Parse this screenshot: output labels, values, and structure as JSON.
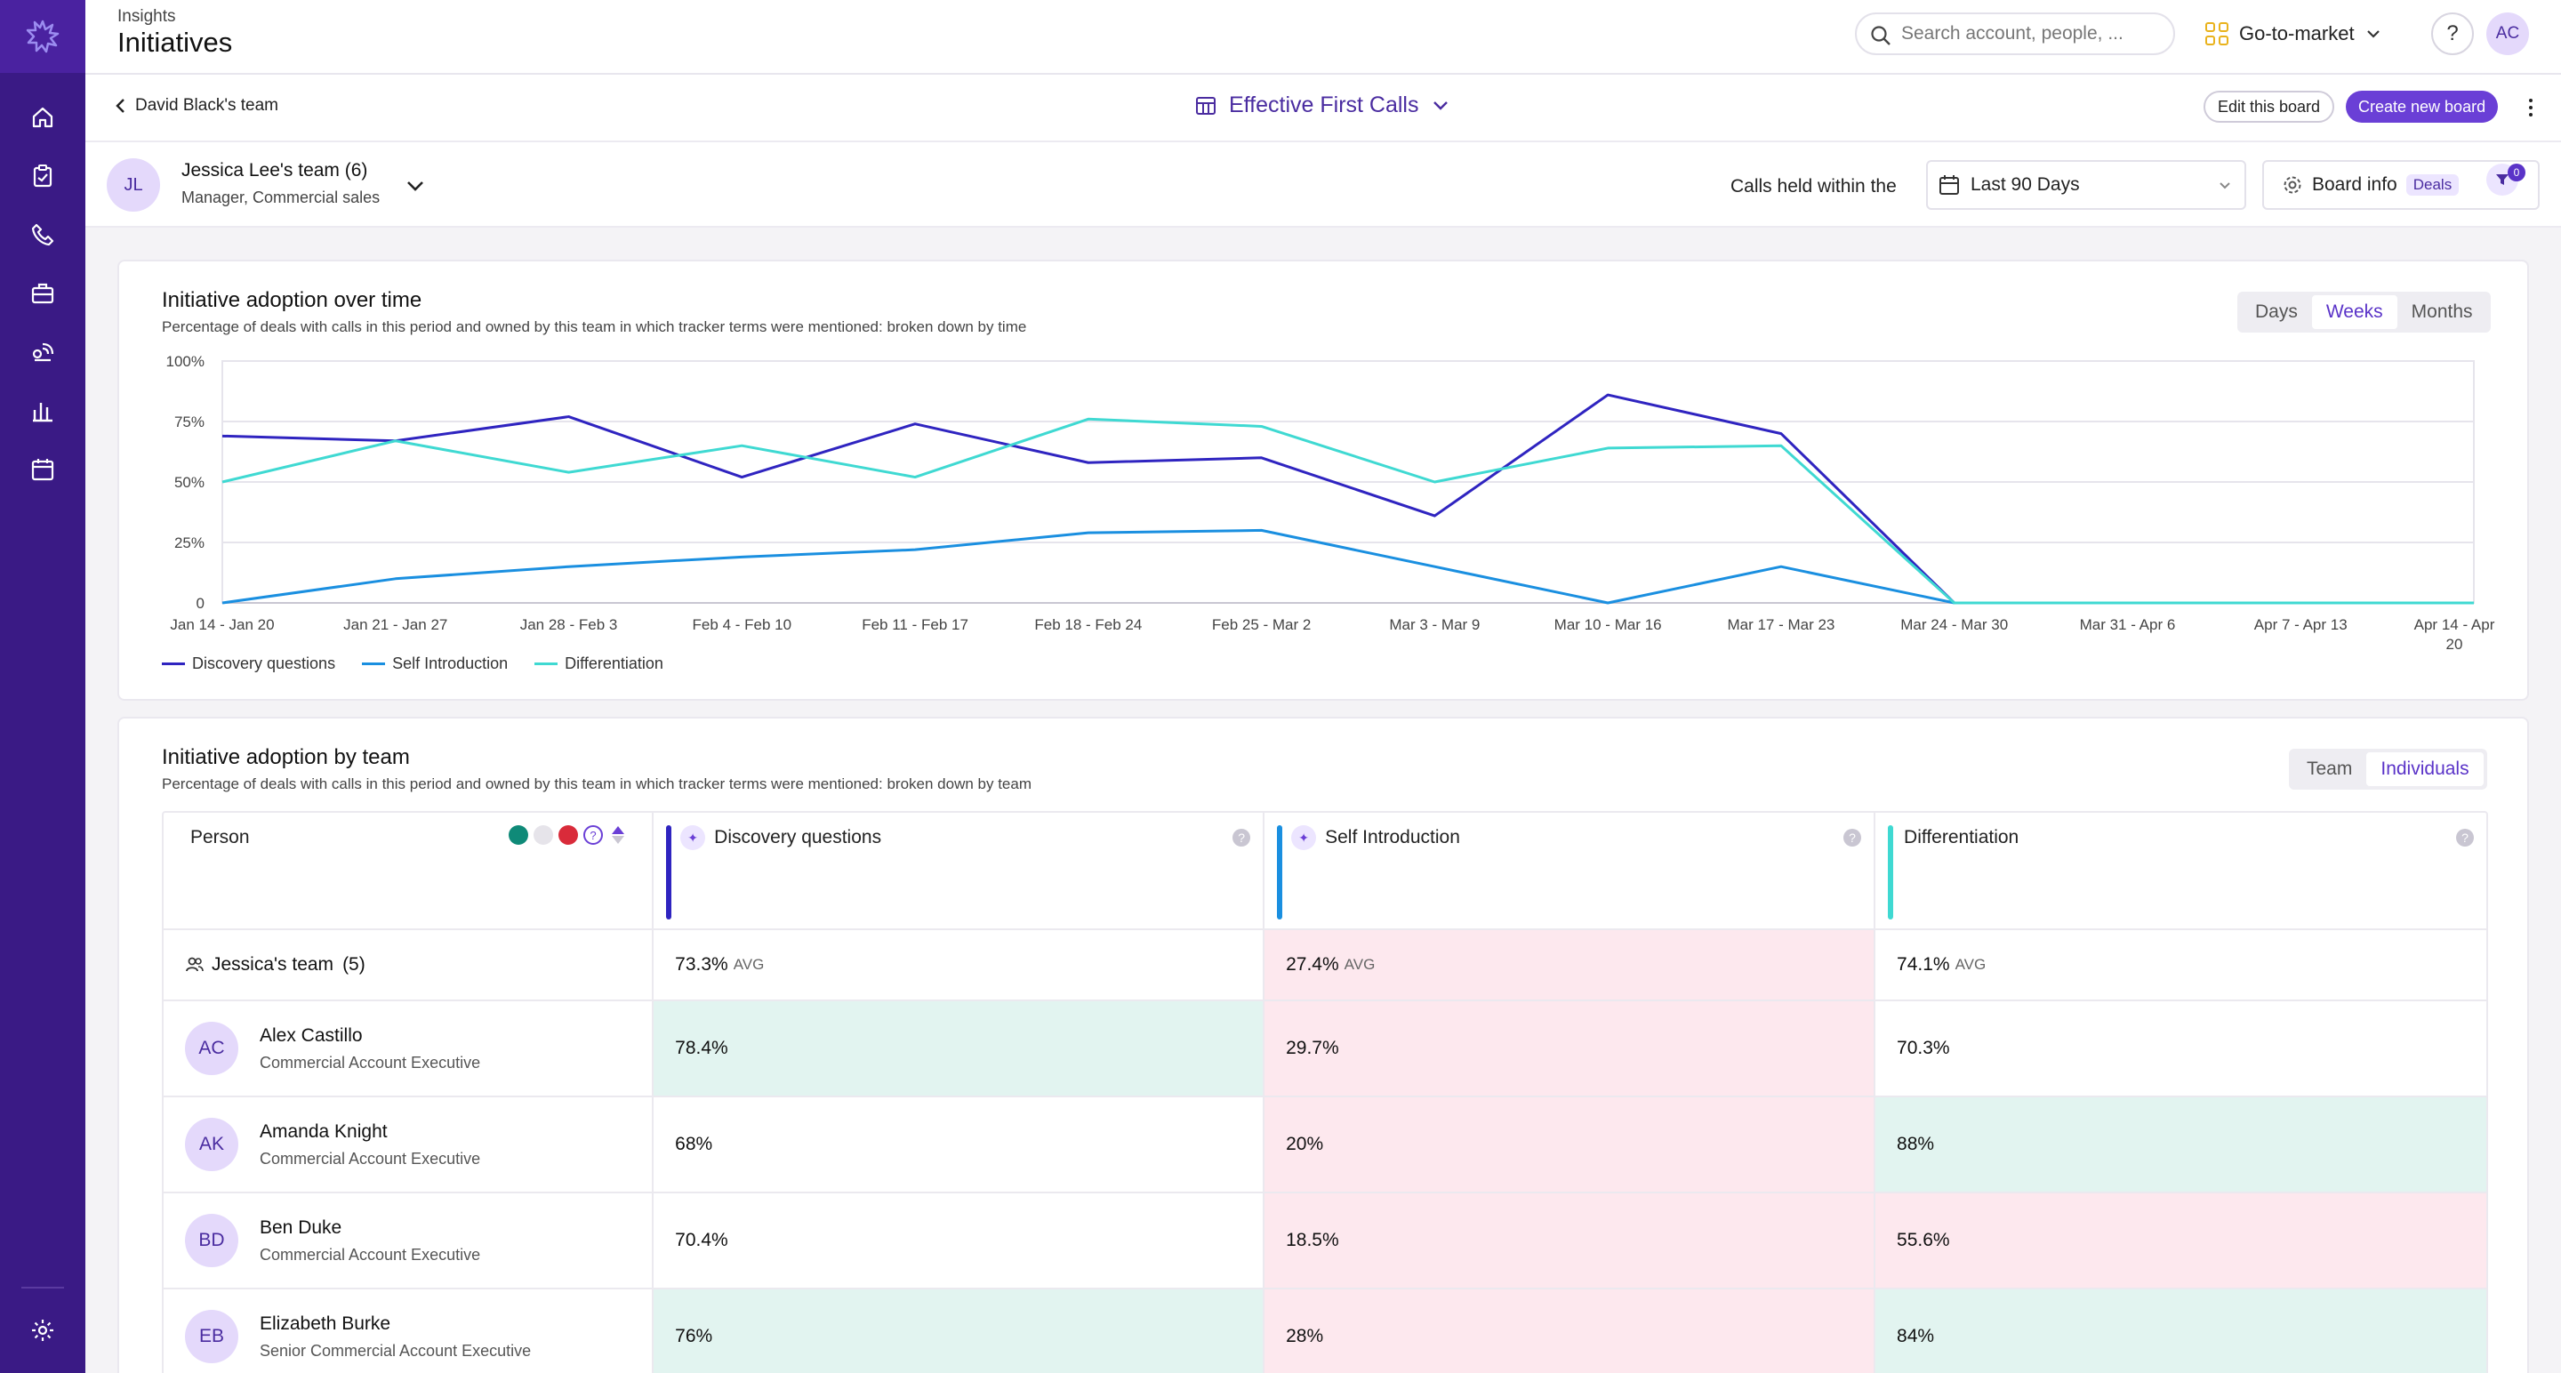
{
  "header": {
    "category": "Insights",
    "title": "Initiatives",
    "search_placeholder": "Search account, people, ...",
    "workspace": "Go-to-market",
    "help": "?",
    "user_initials": "AC"
  },
  "board": {
    "back_label": "David Black's team",
    "title": "Effective First Calls",
    "edit_label": "Edit this board",
    "create_label": "Create new board"
  },
  "team": {
    "initials": "JL",
    "name": "Jessica Lee's team (6)",
    "role": "Manager, Commercial sales"
  },
  "filters": {
    "calls_label": "Calls held within the",
    "date_range": "Last 90 Days",
    "board_info": "Board info",
    "deals_badge": "Deals",
    "filter_count": "0"
  },
  "colors": {
    "accent": "#6a3fd6",
    "sidebar": "#3a1a85",
    "discovery": "#2f24c0",
    "self_intro": "#1a8fe0",
    "differentiation": "#3fd9d2",
    "good_cell": "#e2f4f0",
    "bad_cell": "#fde8ee"
  },
  "adoption_time": {
    "title": "Initiative adoption over time",
    "subtitle": "Percentage of deals with calls in this period and owned by this team in which tracker terms were mentioned: broken down by time",
    "toggles": [
      "Days",
      "Weeks",
      "Months"
    ],
    "active_toggle": "Weeks"
  },
  "chart_data": {
    "type": "line",
    "categories": [
      "Jan 14 - Jan 20",
      "Jan 21 - Jan 27",
      "Jan 28 - Feb 3",
      "Feb 4 - Feb 10",
      "Feb 11 - Feb 17",
      "Feb 18 - Feb 24",
      "Feb 25 - Mar 2",
      "Mar 3 - Mar 9",
      "Mar 10 - Mar 16",
      "Mar 17 - Mar 23",
      "Mar 24 - Mar 30",
      "Mar 31 - Apr 6",
      "Apr 7 - Apr 13",
      "Apr 14 - Apr 20"
    ],
    "y_ticks": [
      "0",
      "25%",
      "50%",
      "75%",
      "100%"
    ],
    "ylim": [
      0,
      100
    ],
    "grid": true,
    "legend_position": "bottom-left",
    "series": [
      {
        "name": "Discovery questions",
        "color": "#2f24c0",
        "values": [
          69,
          67,
          77,
          52,
          74,
          58,
          60,
          36,
          86,
          70,
          0,
          0,
          0,
          0
        ]
      },
      {
        "name": "Self Introduction",
        "color": "#1a8fe0",
        "values": [
          0,
          10,
          15,
          19,
          22,
          29,
          30,
          15,
          0,
          15,
          0,
          0,
          0,
          0
        ]
      },
      {
        "name": "Differentiation",
        "color": "#3fd9d2",
        "values": [
          50,
          67,
          54,
          65,
          52,
          76,
          73,
          50,
          64,
          65,
          0,
          0,
          0,
          0
        ]
      }
    ]
  },
  "adoption_team": {
    "title": "Initiative adoption by team",
    "subtitle": "Percentage of deals with calls in this period and owned by this team in which tracker terms were mentioned: broken down by team",
    "toggles": [
      "Team",
      "Individuals"
    ],
    "active_toggle": "Individuals",
    "columns": {
      "person": "Person",
      "discovery": "Discovery questions",
      "self_intro": "Self Introduction",
      "differentiation": "Differentiation"
    },
    "team_row": {
      "label": "Jessica's team",
      "count": "(5)",
      "discovery": "73.3%",
      "self_intro": "27.4%",
      "differentiation": "74.1%",
      "avg_label": "AVG"
    },
    "people": [
      {
        "initials": "AC",
        "name": "Alex Castillo",
        "role": "Commercial Account Executive",
        "discovery": "78.4%",
        "self_intro": "29.7%",
        "differentiation": "70.3%"
      },
      {
        "initials": "AK",
        "name": "Amanda Knight",
        "role": "Commercial Account Executive",
        "discovery": "68%",
        "self_intro": "20%",
        "differentiation": "88%"
      },
      {
        "initials": "BD",
        "name": "Ben Duke",
        "role": "Commercial Account Executive",
        "discovery": "70.4%",
        "self_intro": "18.5%",
        "differentiation": "55.6%"
      },
      {
        "initials": "EB",
        "name": "Elizabeth Burke",
        "role": "Senior Commercial Account Executive",
        "discovery": "76%",
        "self_intro": "28%",
        "differentiation": "84%"
      }
    ]
  }
}
